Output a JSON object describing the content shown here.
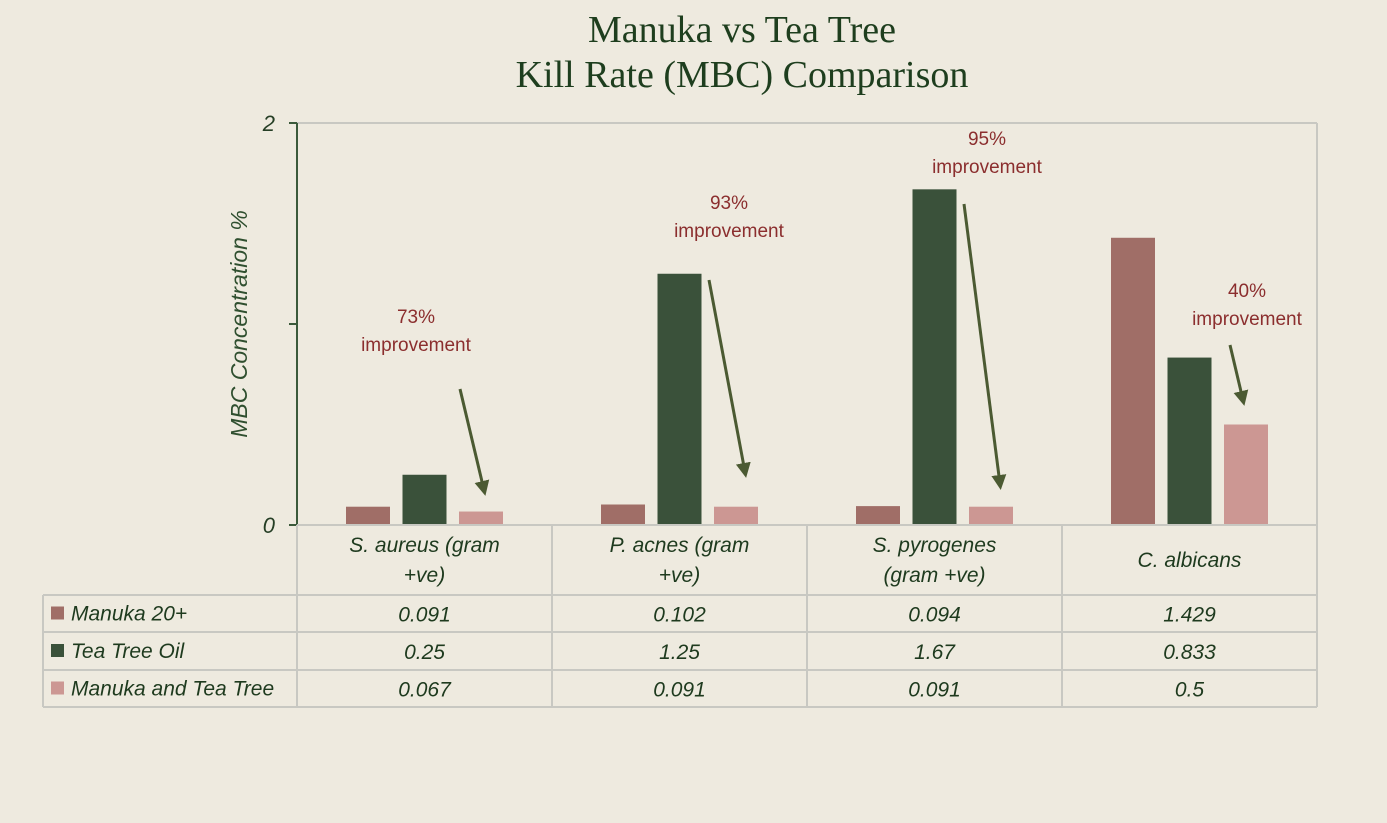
{
  "chart_data": {
    "type": "bar",
    "title_lines": [
      "Manuka vs Tea Tree",
      "Kill Rate (MBC) Comparison"
    ],
    "ylabel": "MBC  Concentration %",
    "ylim": [
      0,
      2
    ],
    "y_tick_labels": [
      "0",
      "2"
    ],
    "grid": false,
    "legend_placement": "data-table-left",
    "categories": [
      [
        "S. aureus (gram",
        "+ve)"
      ],
      [
        "P. acnes (gram",
        "+ve)"
      ],
      [
        "S. pyrogenes",
        "(gram +ve)"
      ],
      [
        "C. albicans"
      ]
    ],
    "series": [
      {
        "name": "Manuka 20+",
        "color": "#A06E67",
        "values": [
          0.091,
          0.102,
          0.094,
          1.429
        ],
        "labels": [
          "0.091",
          "0.102",
          "0.094",
          "1.429"
        ]
      },
      {
        "name": "Tea Tree Oil",
        "color": "#3A513A",
        "values": [
          0.25,
          1.25,
          1.67,
          0.833
        ],
        "labels": [
          "0.25",
          "1.25",
          "1.67",
          "0.833"
        ]
      },
      {
        "name": "Manuka and Tea Tree",
        "color": "#CC9793",
        "values": [
          0.067,
          0.091,
          0.091,
          0.5
        ],
        "labels": [
          "0.067",
          "0.091",
          "0.091",
          "0.5"
        ]
      }
    ],
    "annotations": [
      {
        "category": 0,
        "lines": [
          "73%",
          "improvement"
        ]
      },
      {
        "category": 1,
        "lines": [
          "93%",
          "improvement"
        ]
      },
      {
        "category": 2,
        "lines": [
          "95%",
          "improvement"
        ]
      },
      {
        "category": 3,
        "lines": [
          "40%",
          "improvement"
        ]
      }
    ],
    "arrow_color": "#4B5A32",
    "annotation_color": "#8B2E2E"
  }
}
